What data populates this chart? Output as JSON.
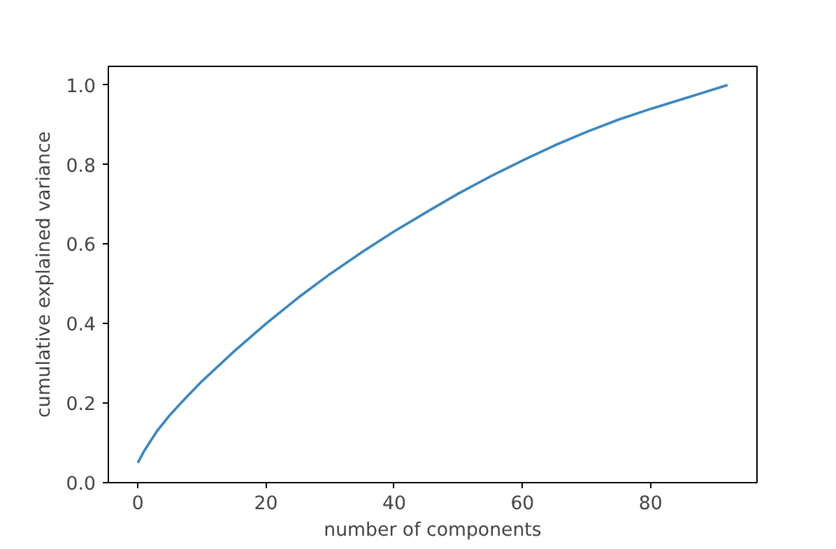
{
  "chart_data": {
    "type": "line",
    "xlabel": "number of components",
    "ylabel": "cumulative explained variance",
    "x": [
      0,
      1,
      2,
      3,
      4,
      5,
      7,
      10,
      15,
      20,
      25,
      30,
      35,
      40,
      45,
      50,
      55,
      60,
      65,
      70,
      75,
      80,
      85,
      90,
      92
    ],
    "series": [
      {
        "color": "#3a87c0",
        "values": [
          0.05,
          0.08,
          0.105,
          0.13,
          0.15,
          0.17,
          0.205,
          0.255,
          0.33,
          0.4,
          0.465,
          0.525,
          0.58,
          0.632,
          0.68,
          0.727,
          0.77,
          0.81,
          0.848,
          0.882,
          0.913,
          0.94,
          0.965,
          0.99,
          1.0
        ]
      }
    ],
    "xlim": [
      -4.6,
      96.6
    ],
    "ylim": [
      0.0,
      1.047
    ],
    "xticks": [
      0,
      20,
      40,
      60,
      80
    ],
    "yticks": [
      {
        "value": 0,
        "label": "0.0"
      },
      {
        "value": 0.2,
        "label": "0.2"
      },
      {
        "value": 0.4,
        "label": "0.4"
      },
      {
        "value": 0.6,
        "label": "0.6"
      },
      {
        "value": 0.8,
        "label": "0.8"
      },
      {
        "value": 1.0,
        "label": "1.0"
      }
    ],
    "grid": false,
    "marker": "none",
    "line_style": "solid"
  }
}
